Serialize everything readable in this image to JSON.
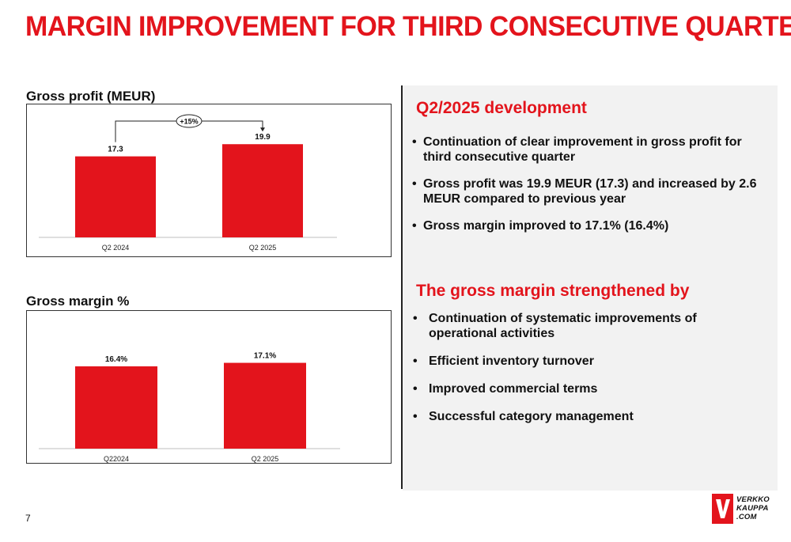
{
  "slide": {
    "title": "MARGIN IMPROVEMENT FOR THIRD CONSECUTIVE QUARTER",
    "page_number": "7"
  },
  "colors": {
    "accent": "#e3141c",
    "panel_bg": "#f2f2f2",
    "text": "#111111"
  },
  "charts": {
    "gross_profit_label": "Gross profit (MEUR)",
    "gross_margin_label": "Gross margin %"
  },
  "chart_data": [
    {
      "type": "bar",
      "title": "Gross profit (MEUR)",
      "categories": [
        "Q2 2024",
        "Q2 2025"
      ],
      "values": [
        17.3,
        19.9
      ],
      "value_labels": [
        "17.3",
        "19.9"
      ],
      "annotation": "+15%",
      "ylim": [
        0,
        24.5
      ],
      "grid": false,
      "color": "#e3141c"
    },
    {
      "type": "bar",
      "title": "Gross margin %",
      "categories": [
        "Q22024",
        "Q2 2025"
      ],
      "values": [
        16.4,
        17.1
      ],
      "value_labels": [
        "16.4%",
        "17.1%"
      ],
      "ylim": [
        0,
        20.5
      ],
      "grid": false,
      "color": "#e3141c"
    }
  ],
  "panel": {
    "development_heading": "Q2/2025 development",
    "development_bullets": [
      "Continuation of clear improvement in gross profit for third consecutive quarter",
      "Gross profit was 19.9 MEUR (17.3) and increased by 2.6 MEUR compared to previous year",
      "Gross margin improved to 17.1% (16.4%)"
    ],
    "strength_heading": "The gross margin strengthened by",
    "strength_bullets": [
      "Continuation of systematic improvements of operational activities",
      "Efficient inventory turnover",
      "Improved commercial terms",
      "Successful category management"
    ]
  },
  "logo": {
    "mark": "V",
    "lines": [
      "VERKKO",
      "KAUPPA",
      ".COM"
    ]
  }
}
